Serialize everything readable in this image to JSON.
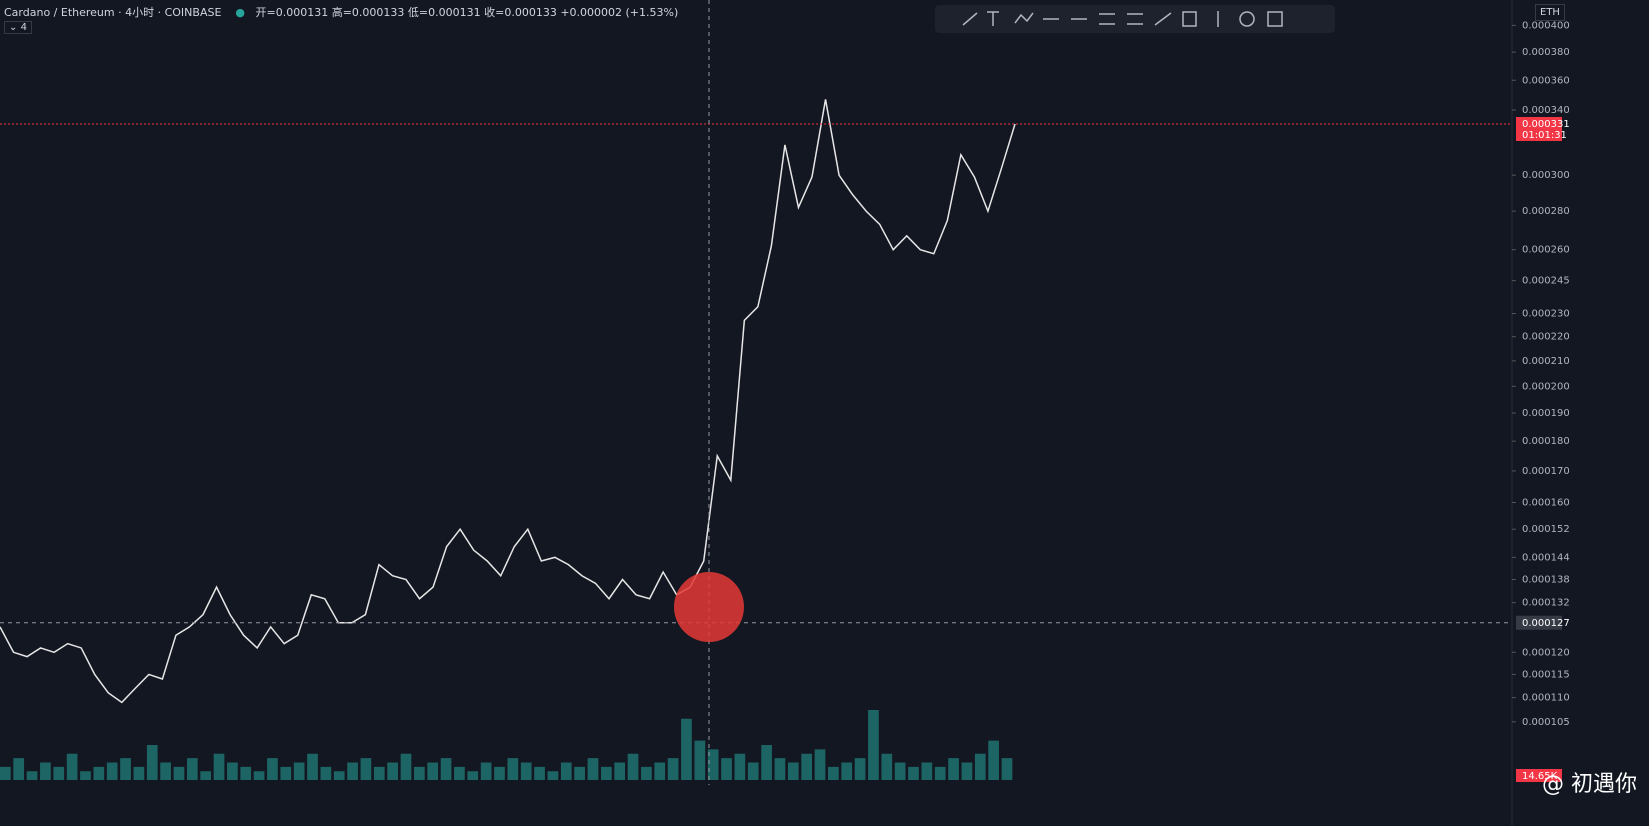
{
  "header": {
    "symbol": "Cardano / Ethereum · 4小时 · COINBASE",
    "ohlc": "开=0.000131 高=0.000133 低=0.000131 收=0.000133 +0.000002 (+1.53%)",
    "collapse": "4",
    "currency": "ETH"
  },
  "chart_data": {
    "type": "line",
    "color": "#e6e6e6",
    "log_scale": true,
    "values": [
      0.000126,
      0.00012,
      0.000119,
      0.000121,
      0.00012,
      0.000122,
      0.000121,
      0.000115,
      0.000111,
      0.000109,
      0.000112,
      0.000115,
      0.000114,
      0.000124,
      0.000126,
      0.000129,
      0.000136,
      0.000129,
      0.000124,
      0.000121,
      0.000126,
      0.000122,
      0.000124,
      0.000134,
      0.000133,
      0.000127,
      0.000127,
      0.000129,
      0.000142,
      0.000139,
      0.000138,
      0.000133,
      0.000136,
      0.000147,
      0.000152,
      0.000146,
      0.000143,
      0.000139,
      0.000147,
      0.000152,
      0.000143,
      0.000144,
      0.000142,
      0.000139,
      0.000137,
      0.000133,
      0.000138,
      0.000134,
      0.000133,
      0.00014,
      0.000134,
      0.000136,
      0.000143,
      0.000175,
      0.000167,
      0.000227,
      0.000233,
      0.000262,
      0.000318,
      0.000282,
      0.000299,
      0.000347,
      0.0003,
      0.000289,
      0.00028,
      0.000273,
      0.00026,
      0.000267,
      0.00026,
      0.000258,
      0.000275,
      0.000312,
      0.000299,
      0.00028,
      0.000304,
      0.000331
    ],
    "volume": {
      "color": "#26a69a",
      "values": [
        3,
        5,
        2,
        4,
        3,
        6,
        2,
        3,
        4,
        5,
        3,
        8,
        4,
        3,
        5,
        2,
        6,
        4,
        3,
        2,
        5,
        3,
        4,
        6,
        3,
        2,
        4,
        5,
        3,
        4,
        6,
        3,
        4,
        5,
        3,
        2,
        4,
        3,
        5,
        4,
        3,
        2,
        4,
        3,
        5,
        3,
        4,
        6,
        3,
        4,
        5,
        14,
        9,
        7,
        5,
        6,
        4,
        8,
        5,
        4,
        6,
        7,
        3,
        4,
        5,
        16,
        6,
        4,
        3,
        4,
        3,
        5,
        4,
        6,
        9,
        5
      ],
      "label": "14.65K"
    },
    "ylim": [
      9.3e-05,
      0.00042
    ],
    "yticks": [
      {
        "value": 0.0004,
        "label": "0.000400"
      },
      {
        "value": 0.00038,
        "label": "0.000380"
      },
      {
        "value": 0.00036,
        "label": "0.000360"
      },
      {
        "value": 0.00034,
        "label": "0.000340"
      },
      {
        "value": 0.0003,
        "label": "0.000300"
      },
      {
        "value": 0.00028,
        "label": "0.000280"
      },
      {
        "value": 0.00026,
        "label": "0.000260"
      },
      {
        "value": 0.000245,
        "label": "0.000245"
      },
      {
        "value": 0.00023,
        "label": "0.000230"
      },
      {
        "value": 0.00022,
        "label": "0.000220"
      },
      {
        "value": 0.00021,
        "label": "0.000210"
      },
      {
        "value": 0.0002,
        "label": "0.000200"
      },
      {
        "value": 0.00019,
        "label": "0.000190"
      },
      {
        "value": 0.00018,
        "label": "0.000180"
      },
      {
        "value": 0.00017,
        "label": "0.000170"
      },
      {
        "value": 0.00016,
        "label": "0.000160"
      },
      {
        "value": 0.000152,
        "label": "0.000152"
      },
      {
        "value": 0.000144,
        "label": "0.000144"
      },
      {
        "value": 0.000138,
        "label": "0.000138"
      },
      {
        "value": 0.000132,
        "label": "0.000132"
      },
      {
        "value": 0.00012,
        "label": "0.000120"
      },
      {
        "value": 0.000115,
        "label": "0.000115"
      },
      {
        "value": 0.00011,
        "label": "0.000110"
      },
      {
        "value": 0.000105,
        "label": "0.000105"
      }
    ],
    "current": {
      "value": 0.000331,
      "label": "0.000331",
      "countdown": "01:01:31"
    },
    "crosshair": {
      "value": 0.000127,
      "label": "0.000127"
    }
  },
  "watermark": "@ 初遇你"
}
